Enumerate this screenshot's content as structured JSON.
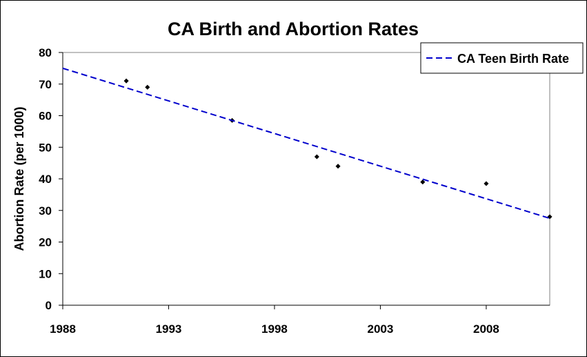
{
  "chart_data": {
    "type": "scatter",
    "title": "CA Birth and Abortion Rates",
    "xlabel": "",
    "ylabel": "Abortion Rate (per 1000)",
    "xlim": [
      1988,
      2011
    ],
    "ylim": [
      0,
      80
    ],
    "xticks": [
      1988,
      1993,
      1998,
      2003,
      2008
    ],
    "yticks": [
      0,
      10,
      20,
      30,
      40,
      50,
      60,
      70,
      80
    ],
    "grid": false,
    "legend_position": "top-right",
    "series": [
      {
        "name": "data points",
        "kind": "scatter",
        "color": "#000000",
        "x": [
          1991,
          1992,
          1996,
          2000,
          2001,
          2005,
          2008,
          2011
        ],
        "y": [
          71,
          69,
          58.5,
          47,
          44,
          39,
          38.5,
          28
        ]
      },
      {
        "name": "CA Teen Birth Rate",
        "kind": "trendline",
        "style": "dashed",
        "color": "#0000CC",
        "x": [
          1988,
          2011
        ],
        "y": [
          75,
          27.5
        ]
      }
    ],
    "legend": [
      "CA Teen Birth Rate"
    ]
  }
}
